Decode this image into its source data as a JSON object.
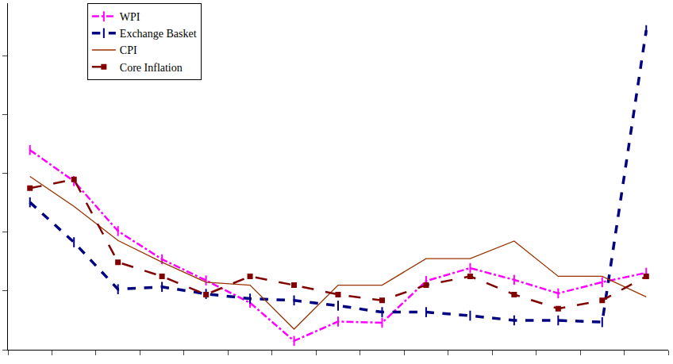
{
  "chart_data": {
    "type": "line",
    "categories": [
      null,
      null,
      null,
      null,
      null,
      null,
      null,
      null,
      null,
      null,
      null,
      null,
      null,
      null,
      null
    ],
    "series": [
      {
        "name": "WPI",
        "color": "#ff00ff",
        "line_style": "dashdot",
        "marker": "line-ns",
        "values": [
          3.4,
          2.87,
          2.02,
          1.54,
          1.18,
          0.8,
          0.15,
          0.48,
          0.46,
          1.17,
          1.39,
          1.19,
          0.96,
          1.15,
          1.31
        ]
      },
      {
        "name": "Exchange Basket",
        "color": "#000080",
        "line_style": "dash",
        "marker": "line-ns",
        "values": [
          2.51,
          1.83,
          1.03,
          1.07,
          0.95,
          0.87,
          0.84,
          0.75,
          0.64,
          0.64,
          0.58,
          0.5,
          0.5,
          0.47,
          5.44
        ]
      },
      {
        "name": "CPI",
        "color": "#993300",
        "line_style": "solid",
        "marker": "none",
        "values": [
          2.95,
          2.44,
          1.86,
          1.49,
          1.15,
          1.1,
          0.35,
          1.1,
          1.1,
          1.55,
          1.55,
          1.85,
          1.25,
          1.25,
          0.9
        ]
      },
      {
        "name": "Core Inflation",
        "color": "#800000",
        "line_style": "longdash",
        "marker": "square",
        "values": [
          2.75,
          2.9,
          1.49,
          1.25,
          0.94,
          1.25,
          1.1,
          0.94,
          0.84,
          1.1,
          1.25,
          0.94,
          0.7,
          0.84,
          1.25
        ]
      }
    ],
    "ylim": [
      0,
      5.9
    ],
    "yticks": [
      0,
      1,
      2,
      3,
      4,
      5
    ],
    "tick_labels": false,
    "grid": false,
    "legend": "upper left"
  }
}
